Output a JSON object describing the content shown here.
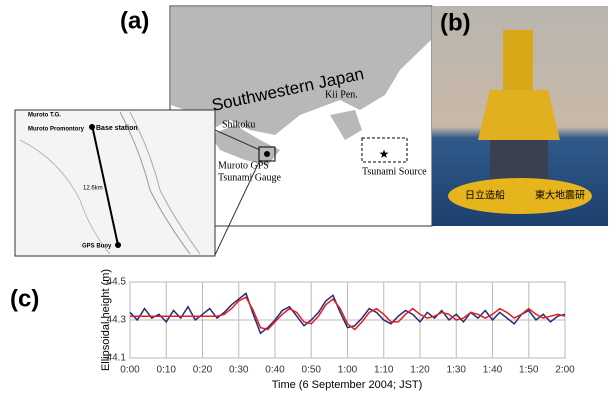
{
  "panels": {
    "a": {
      "label": "(a)",
      "region": "Southwestern Japan",
      "kii": "Kii Pen.",
      "shikoku": "Shikoku",
      "gauge": [
        "Muroto GPS",
        "Tsunami Gauge"
      ],
      "source": "Tsunami Source",
      "inset": {
        "tg": "Muroto T.G.",
        "promontory": "Muroto Promontory",
        "base": "Base station",
        "distance": "12.6km",
        "buoy": "GPS Buoy"
      }
    },
    "b": {
      "label": "(b)",
      "hull_left": "日立造船",
      "hull_right": "東大地震研"
    },
    "c": {
      "label": "(c)"
    }
  },
  "chart_data": {
    "type": "line",
    "xlabel": "Time (6 September 2004; JST)",
    "ylabel": "Ellipsoidal height (m)",
    "x": [
      0,
      2,
      4,
      6,
      8,
      10,
      12,
      14,
      16,
      18,
      20,
      22,
      24,
      26,
      28,
      30,
      32,
      34,
      36,
      38,
      40,
      42,
      44,
      46,
      48,
      50,
      52,
      54,
      56,
      58,
      60,
      62,
      64,
      66,
      68,
      70,
      72,
      74,
      76,
      78,
      80,
      82,
      84,
      86,
      88,
      90,
      92,
      94,
      96,
      98,
      100,
      102,
      104,
      106,
      108,
      110,
      112,
      114,
      116,
      118,
      120
    ],
    "series": [
      {
        "color": "#2a2a7a",
        "values": [
          44.34,
          44.3,
          44.36,
          44.31,
          44.33,
          44.29,
          44.35,
          44.31,
          44.37,
          44.3,
          44.33,
          44.36,
          44.31,
          44.34,
          44.38,
          44.41,
          44.44,
          44.33,
          44.23,
          44.26,
          44.3,
          44.35,
          44.37,
          44.32,
          44.27,
          44.3,
          44.34,
          44.4,
          44.43,
          44.34,
          44.26,
          44.27,
          44.31,
          44.36,
          44.34,
          44.3,
          44.28,
          44.32,
          44.35,
          44.33,
          44.29,
          44.34,
          44.31,
          44.35,
          44.3,
          44.33,
          44.29,
          44.34,
          44.31,
          44.35,
          44.3,
          44.34,
          44.31,
          44.28,
          44.33,
          44.35,
          44.3,
          44.33,
          44.29,
          44.32,
          44.33
        ]
      },
      {
        "color": "#e02020",
        "values": [
          44.32,
          44.32,
          44.32,
          44.32,
          44.32,
          44.32,
          44.32,
          44.32,
          44.32,
          44.32,
          44.32,
          44.32,
          44.32,
          44.33,
          44.36,
          44.4,
          44.42,
          44.35,
          44.26,
          44.25,
          44.29,
          44.33,
          44.36,
          44.34,
          44.29,
          44.28,
          44.32,
          44.38,
          44.41,
          44.36,
          44.28,
          44.25,
          44.29,
          44.34,
          44.36,
          44.33,
          44.29,
          44.29,
          44.33,
          44.36,
          44.33,
          44.31,
          44.32,
          44.34,
          44.33,
          44.3,
          44.31,
          44.34,
          44.33,
          44.31,
          44.33,
          44.36,
          44.34,
          44.31,
          44.33,
          44.36,
          44.33,
          44.31,
          44.32,
          44.33,
          44.32
        ]
      }
    ],
    "xlim": [
      0,
      120
    ],
    "xticks": [
      {
        "value": 0,
        "label": "0:00"
      },
      {
        "value": 10,
        "label": "0:10"
      },
      {
        "value": 20,
        "label": "0:20"
      },
      {
        "value": 30,
        "label": "0:30"
      },
      {
        "value": 40,
        "label": "0:40"
      },
      {
        "value": 50,
        "label": "0:50"
      },
      {
        "value": 60,
        "label": "1:00"
      },
      {
        "value": 70,
        "label": "1:10"
      },
      {
        "value": 80,
        "label": "1:20"
      },
      {
        "value": 90,
        "label": "1:30"
      },
      {
        "value": 100,
        "label": "1:40"
      },
      {
        "value": 110,
        "label": "1:50"
      },
      {
        "value": 120,
        "label": "2:00"
      }
    ],
    "ylim": [
      44.1,
      44.5
    ],
    "yticks": [
      44.1,
      44.3,
      44.5
    ],
    "grid": true
  }
}
